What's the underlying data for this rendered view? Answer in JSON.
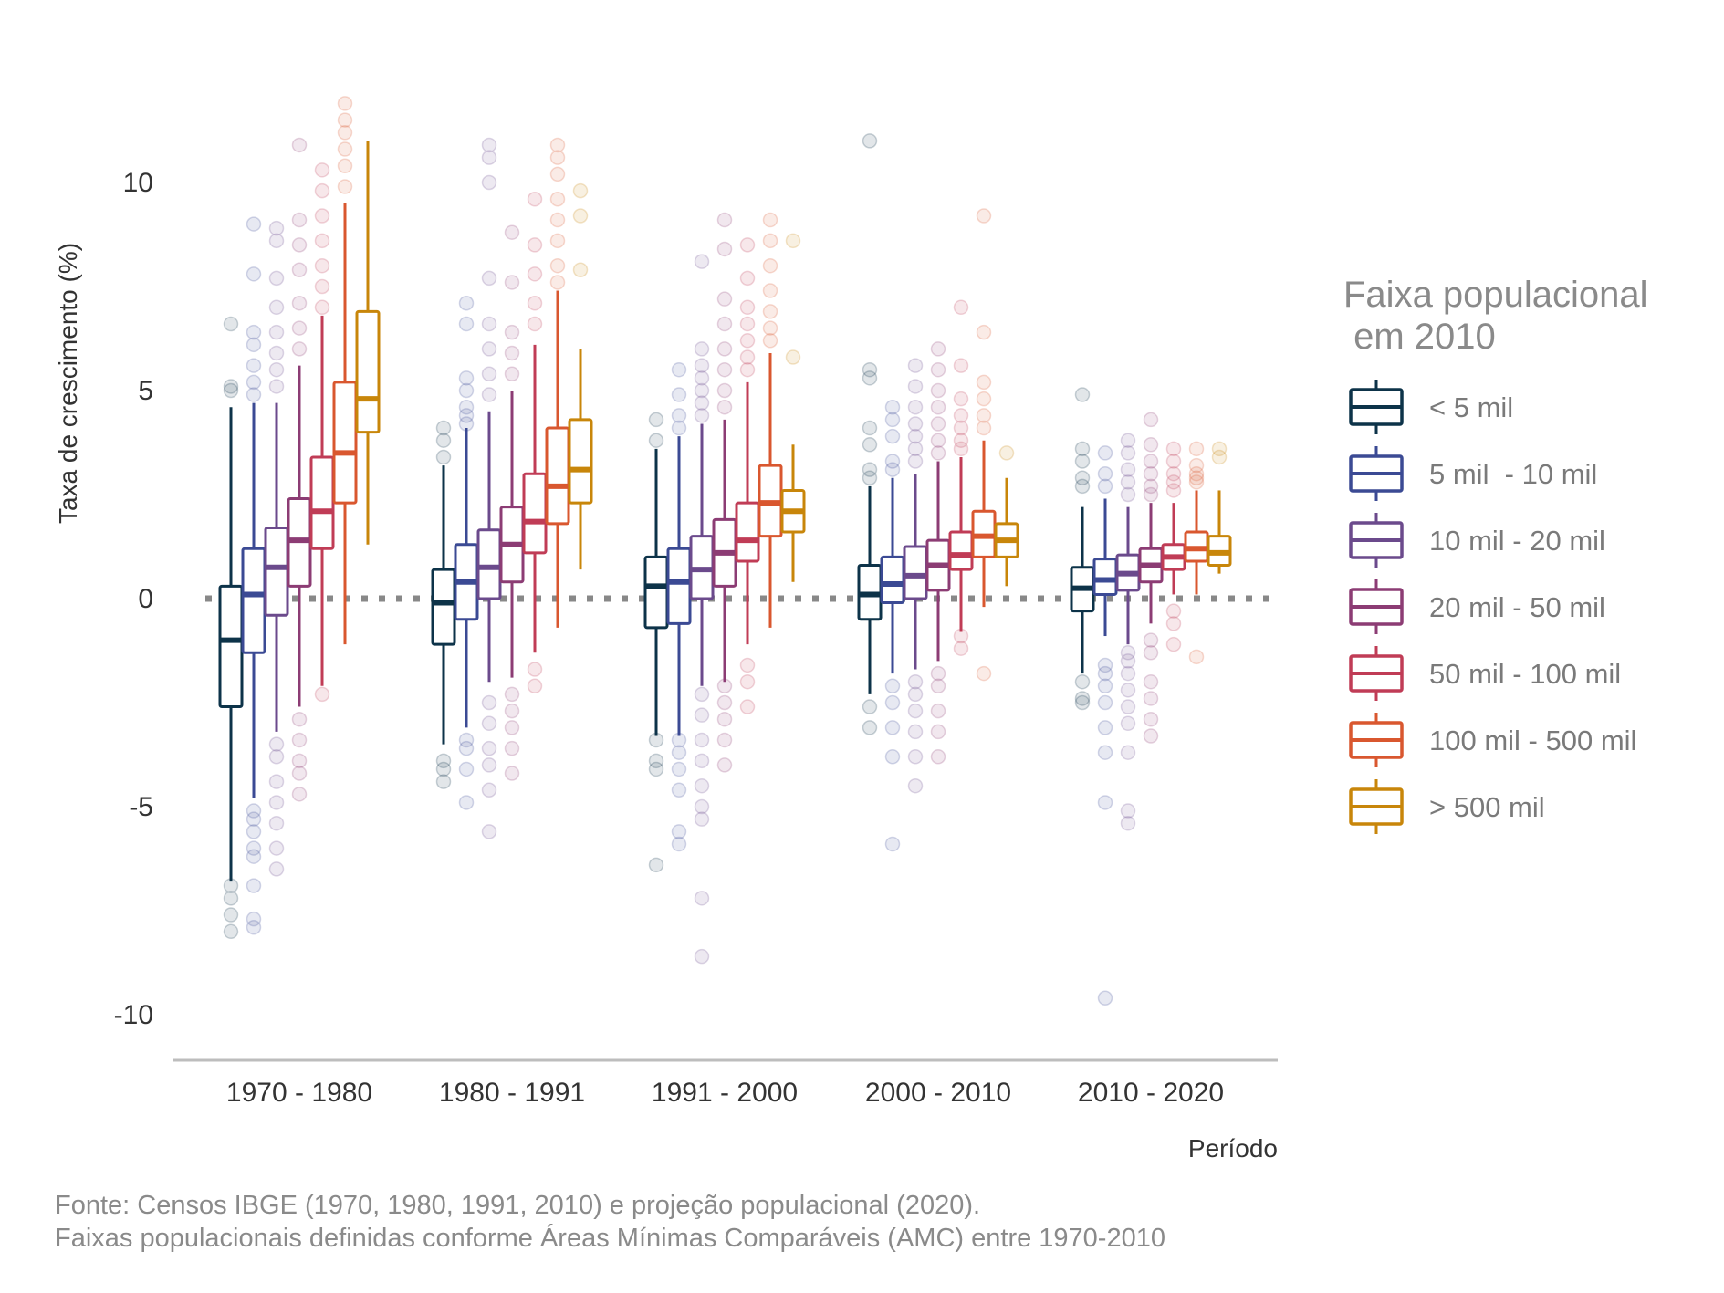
{
  "chart_data": {
    "type": "boxplot",
    "xlabel": "Período",
    "ylabel": "Taxa de crescimento (%)",
    "ylim": [
      -11,
      12.5
    ],
    "yticks": [
      10,
      5,
      0,
      -5,
      -10
    ],
    "ytick_labels": [
      "10",
      "5",
      "0",
      "-5",
      "-10"
    ],
    "reference_line": {
      "y": 0,
      "style": "dotted",
      "color": "#888888"
    },
    "categories": [
      "1970 - 1980",
      "1980 - 1991",
      "1991 - 2000",
      "2000 - 2010",
      "2010 - 2020"
    ],
    "legend": {
      "title_line1": "Faixa populacional",
      "title_line2": " em 2010",
      "placement": "right"
    },
    "series": [
      {
        "name": "< 5 mil",
        "color": "#0d3349",
        "boxes": [
          {
            "lower": -6.8,
            "q1": -2.6,
            "median": -1.0,
            "q3": 0.3,
            "upper": 4.6,
            "outliers": [
              6.6,
              5.1,
              5.0,
              -6.9,
              -7.2,
              -7.6,
              -8.0
            ]
          },
          {
            "lower": -3.5,
            "q1": -1.1,
            "median": -0.1,
            "q3": 0.7,
            "upper": 3.2,
            "outliers": [
              4.1,
              3.8,
              3.4,
              -3.9,
              -4.1,
              -4.4
            ]
          },
          {
            "lower": -3.3,
            "q1": -0.7,
            "median": 0.3,
            "q3": 1.0,
            "upper": 3.6,
            "outliers": [
              4.3,
              3.8,
              -3.4,
              -3.9,
              -4.1,
              -6.4
            ]
          },
          {
            "lower": -2.3,
            "q1": -0.5,
            "median": 0.1,
            "q3": 0.8,
            "upper": 2.7,
            "outliers": [
              5.5,
              5.3,
              4.1,
              3.7,
              3.1,
              2.9,
              -2.6,
              -3.1,
              11.0
            ]
          },
          {
            "lower": -1.8,
            "q1": -0.3,
            "median": 0.25,
            "q3": 0.75,
            "upper": 2.2,
            "outliers": [
              4.9,
              3.6,
              3.3,
              2.9,
              2.7,
              -2.0,
              -2.4,
              -2.5
            ]
          }
        ]
      },
      {
        "name": "5 mil  - 10 mil",
        "color": "#3b4a94",
        "boxes": [
          {
            "lower": -4.8,
            "q1": -1.3,
            "median": 0.1,
            "q3": 1.2,
            "upper": 4.7,
            "outliers": [
              9.0,
              7.8,
              6.4,
              6.1,
              5.6,
              5.2,
              4.9,
              -5.1,
              -5.3,
              -5.6,
              -6.0,
              -6.2,
              -6.9,
              -7.7,
              -7.9
            ]
          },
          {
            "lower": -3.1,
            "q1": -0.5,
            "median": 0.4,
            "q3": 1.3,
            "upper": 4.1,
            "outliers": [
              7.1,
              6.6,
              5.3,
              5.0,
              4.6,
              4.4,
              4.2,
              -3.4,
              -3.6,
              -4.1,
              -4.9
            ]
          },
          {
            "lower": -3.3,
            "q1": -0.6,
            "median": 0.4,
            "q3": 1.2,
            "upper": 3.9,
            "outliers": [
              5.5,
              4.9,
              4.4,
              4.1,
              -3.4,
              -3.7,
              -4.1,
              -4.6,
              -5.6,
              -5.9
            ]
          },
          {
            "lower": -1.8,
            "q1": -0.1,
            "median": 0.35,
            "q3": 1.0,
            "upper": 2.9,
            "outliers": [
              4.6,
              4.3,
              3.9,
              3.3,
              3.1,
              -2.1,
              -2.5,
              -3.1,
              -3.8,
              -5.9
            ]
          },
          {
            "lower": -0.9,
            "q1": 0.1,
            "median": 0.45,
            "q3": 0.95,
            "upper": 2.4,
            "outliers": [
              3.5,
              3.0,
              2.7,
              -1.6,
              -1.8,
              -2.1,
              -2.5,
              -3.1,
              -3.7,
              -4.9,
              -9.6
            ]
          }
        ]
      },
      {
        "name": "10 mil - 20 mil",
        "color": "#6b4a8c",
        "boxes": [
          {
            "lower": -3.2,
            "q1": -0.4,
            "median": 0.75,
            "q3": 1.7,
            "upper": 4.7,
            "outliers": [
              8.9,
              8.6,
              7.7,
              7.0,
              6.4,
              5.9,
              5.5,
              5.1,
              -3.5,
              -3.8,
              -4.4,
              -4.9,
              -5.4,
              -6.0,
              -6.5
            ]
          },
          {
            "lower": -2.0,
            "q1": 0.0,
            "median": 0.75,
            "q3": 1.65,
            "upper": 4.5,
            "outliers": [
              10.9,
              10.6,
              10.0,
              7.7,
              6.6,
              6.0,
              5.4,
              4.9,
              -2.5,
              -3.0,
              -3.6,
              -4.0,
              -4.6,
              -5.6
            ]
          },
          {
            "lower": -2.1,
            "q1": 0.0,
            "median": 0.7,
            "q3": 1.5,
            "upper": 4.2,
            "outliers": [
              8.1,
              6.0,
              5.6,
              5.3,
              5.0,
              4.7,
              4.4,
              -2.3,
              -2.8,
              -3.4,
              -3.9,
              -4.5,
              -5.0,
              -5.3,
              -7.2,
              -8.6
            ]
          },
          {
            "lower": -1.7,
            "q1": 0.0,
            "median": 0.55,
            "q3": 1.25,
            "upper": 3.0,
            "outliers": [
              5.6,
              5.1,
              4.6,
              4.2,
              3.9,
              3.6,
              3.3,
              -2.0,
              -2.3,
              -2.7,
              -3.2,
              -3.8,
              -4.5
            ]
          },
          {
            "lower": -1.1,
            "q1": 0.2,
            "median": 0.6,
            "q3": 1.05,
            "upper": 2.2,
            "outliers": [
              3.8,
              3.5,
              3.1,
              2.8,
              2.5,
              -1.3,
              -1.5,
              -1.8,
              -2.2,
              -2.6,
              -3.0,
              -3.7,
              -5.1,
              -5.4
            ]
          }
        ]
      },
      {
        "name": "20 mil - 50 mil",
        "color": "#8c3c74",
        "boxes": [
          {
            "lower": -2.6,
            "q1": 0.3,
            "median": 1.4,
            "q3": 2.4,
            "upper": 5.6,
            "outliers": [
              10.9,
              9.1,
              8.5,
              7.9,
              7.1,
              6.5,
              6.0,
              -2.9,
              -3.4,
              -3.9,
              -4.2,
              -4.7
            ]
          },
          {
            "lower": -1.9,
            "q1": 0.4,
            "median": 1.3,
            "q3": 2.2,
            "upper": 5.0,
            "outliers": [
              8.8,
              7.6,
              6.4,
              5.9,
              5.4,
              -2.3,
              -2.7,
              -3.1,
              -3.6,
              -4.2
            ]
          },
          {
            "lower": -2.0,
            "q1": 0.3,
            "median": 1.1,
            "q3": 1.9,
            "upper": 4.3,
            "outliers": [
              9.1,
              8.4,
              7.2,
              6.6,
              6.0,
              5.5,
              5.0,
              4.6,
              -2.1,
              -2.5,
              -2.9,
              -3.4,
              -4.0
            ]
          },
          {
            "lower": -1.5,
            "q1": 0.2,
            "median": 0.8,
            "q3": 1.4,
            "upper": 3.3,
            "outliers": [
              6.0,
              5.5,
              5.0,
              4.6,
              4.2,
              3.8,
              3.5,
              -1.8,
              -2.1,
              -2.7,
              -3.2,
              -3.8
            ]
          },
          {
            "lower": -0.6,
            "q1": 0.4,
            "median": 0.8,
            "q3": 1.2,
            "upper": 2.3,
            "outliers": [
              4.3,
              3.7,
              3.3,
              3.0,
              2.7,
              2.5,
              -1.0,
              -1.3,
              -2.0,
              -2.4,
              -2.9,
              -3.3
            ]
          }
        ]
      },
      {
        "name": "50 mil - 100 mil",
        "color": "#c03c56",
        "boxes": [
          {
            "lower": -2.1,
            "q1": 1.2,
            "median": 2.1,
            "q3": 3.4,
            "upper": 6.8,
            "outliers": [
              10.3,
              9.8,
              9.2,
              8.6,
              8.0,
              7.5,
              7.0,
              -2.3
            ]
          },
          {
            "lower": -1.3,
            "q1": 1.1,
            "median": 1.85,
            "q3": 3.0,
            "upper": 6.1,
            "outliers": [
              9.6,
              8.5,
              7.8,
              7.1,
              6.6,
              -1.7,
              -2.1
            ]
          },
          {
            "lower": -1.1,
            "q1": 0.9,
            "median": 1.4,
            "q3": 2.3,
            "upper": 5.2,
            "outliers": [
              8.5,
              7.7,
              7.0,
              6.6,
              6.2,
              5.8,
              5.5,
              -1.6,
              -2.0,
              -2.6
            ]
          },
          {
            "lower": -0.8,
            "q1": 0.7,
            "median": 1.05,
            "q3": 1.6,
            "upper": 3.4,
            "outliers": [
              7.0,
              5.6,
              4.8,
              4.4,
              4.1,
              3.8,
              3.6,
              -0.9,
              -1.2
            ]
          },
          {
            "lower": 0.1,
            "q1": 0.7,
            "median": 1.0,
            "q3": 1.3,
            "upper": 2.3,
            "outliers": [
              3.6,
              3.3,
              3.0,
              2.8,
              2.6,
              -0.3,
              -0.6,
              -1.1
            ]
          }
        ]
      },
      {
        "name": "100 mil - 500 mil",
        "color": "#d9572f",
        "boxes": [
          {
            "lower": -1.1,
            "q1": 2.3,
            "median": 3.5,
            "q3": 5.2,
            "upper": 9.5,
            "outliers": [
              11.9,
              11.5,
              11.2,
              10.8,
              10.4,
              9.9
            ]
          },
          {
            "lower": -0.7,
            "q1": 1.8,
            "median": 2.7,
            "q3": 4.1,
            "upper": 7.4,
            "outliers": [
              10.9,
              10.6,
              10.2,
              9.6,
              9.1,
              8.6,
              8.0,
              7.6
            ]
          },
          {
            "lower": -0.7,
            "q1": 1.5,
            "median": 2.3,
            "q3": 3.2,
            "upper": 5.9,
            "outliers": [
              9.1,
              8.6,
              8.0,
              7.4,
              6.9,
              6.5,
              6.2
            ]
          },
          {
            "lower": -0.2,
            "q1": 1.0,
            "median": 1.5,
            "q3": 2.1,
            "upper": 3.8,
            "outliers": [
              9.2,
              6.4,
              5.2,
              4.8,
              4.4,
              4.1,
              -1.8
            ]
          },
          {
            "lower": 0.1,
            "q1": 0.9,
            "median": 1.2,
            "q3": 1.6,
            "upper": 2.6,
            "outliers": [
              3.6,
              3.2,
              3.0,
              2.9,
              2.8,
              -1.4
            ]
          }
        ]
      },
      {
        "name": "> 500 mil",
        "color": "#c8860a",
        "boxes": [
          {
            "lower": 1.3,
            "q1": 4.0,
            "median": 4.8,
            "q3": 6.9,
            "upper": 11.0,
            "outliers": []
          },
          {
            "lower": 0.7,
            "q1": 2.3,
            "median": 3.1,
            "q3": 4.3,
            "upper": 6.0,
            "outliers": [
              9.8,
              9.2,
              7.9
            ]
          },
          {
            "lower": 0.4,
            "q1": 1.6,
            "median": 2.1,
            "q3": 2.6,
            "upper": 3.7,
            "outliers": [
              8.6,
              5.8
            ]
          },
          {
            "lower": 0.3,
            "q1": 1.0,
            "median": 1.4,
            "q3": 1.8,
            "upper": 2.9,
            "outliers": [
              3.5
            ]
          },
          {
            "lower": 0.6,
            "q1": 0.8,
            "median": 1.1,
            "q3": 1.5,
            "upper": 2.6,
            "outliers": [
              3.6,
              3.4
            ]
          }
        ]
      }
    ]
  },
  "caption": {
    "line1": "Fonte: Censos IBGE (1970, 1980, 1991, 2010) e projeção populacional (2020).",
    "line2": "Faixas populacionais definidas conforme Áreas Mínimas Comparáveis (AMC) entre 1970-2010"
  }
}
